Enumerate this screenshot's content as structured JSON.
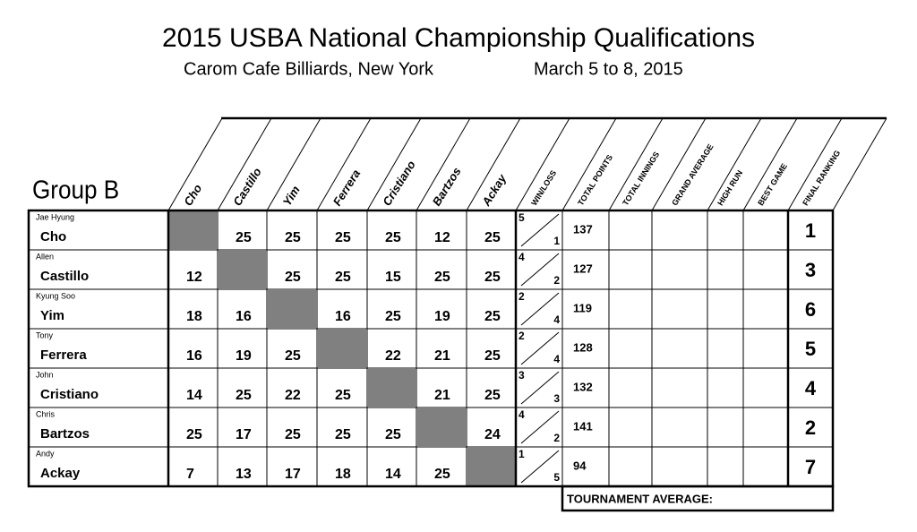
{
  "header": {
    "title": "2015 USBA National Championship Qualifications",
    "venue": "Carom Cafe Billiards, New York",
    "dates": "March 5 to 8, 2015"
  },
  "group": "Group B",
  "columns": [
    "Cho",
    "Castillo",
    "Yim",
    "Ferrera",
    "Cristiano",
    "Bartzos",
    "Ackay",
    "WIN/LOSS",
    "TOTAL POINTS",
    "TOTAL INNINGS",
    "GRAND AVERAGE",
    "HIGH RUN",
    "BEST GAME",
    "FINAL RANKING"
  ],
  "colors": {
    "loss": "#d01010",
    "win": "#000000",
    "self": "#808080"
  },
  "rows": [
    {
      "first": "Jae Hyung",
      "last": "Cho",
      "scores": [
        null,
        25,
        25,
        25,
        25,
        12,
        25
      ],
      "wins": 5,
      "losses": 1,
      "total_points": 137,
      "ranking": 1
    },
    {
      "first": "Allen",
      "last": "Castillo",
      "scores": [
        12,
        null,
        25,
        25,
        15,
        25,
        25
      ],
      "wins": 4,
      "losses": 2,
      "total_points": 127,
      "ranking": 3
    },
    {
      "first": "Kyung Soo",
      "last": "Yim",
      "scores": [
        18,
        16,
        null,
        16,
        25,
        19,
        25
      ],
      "wins": 2,
      "losses": 4,
      "total_points": 119,
      "ranking": 6
    },
    {
      "first": "Tony",
      "last": "Ferrera",
      "scores": [
        16,
        19,
        25,
        null,
        22,
        21,
        25
      ],
      "wins": 2,
      "losses": 4,
      "total_points": 128,
      "ranking": 5
    },
    {
      "first": "John",
      "last": "Cristiano",
      "scores": [
        14,
        25,
        22,
        25,
        null,
        21,
        25
      ],
      "wins": 3,
      "losses": 3,
      "total_points": 132,
      "ranking": 4
    },
    {
      "first": "Chris",
      "last": "Bartzos",
      "scores": [
        25,
        17,
        25,
        25,
        25,
        null,
        24
      ],
      "wins": 4,
      "losses": 2,
      "total_points": 141,
      "ranking": 2
    },
    {
      "first": "Andy",
      "last": "Ackay",
      "scores": [
        7,
        13,
        17,
        18,
        14,
        25,
        null
      ],
      "wins": 1,
      "losses": 5,
      "total_points": 94,
      "ranking": 7
    }
  ],
  "tournament_average_label": "TOURNAMENT AVERAGE:"
}
